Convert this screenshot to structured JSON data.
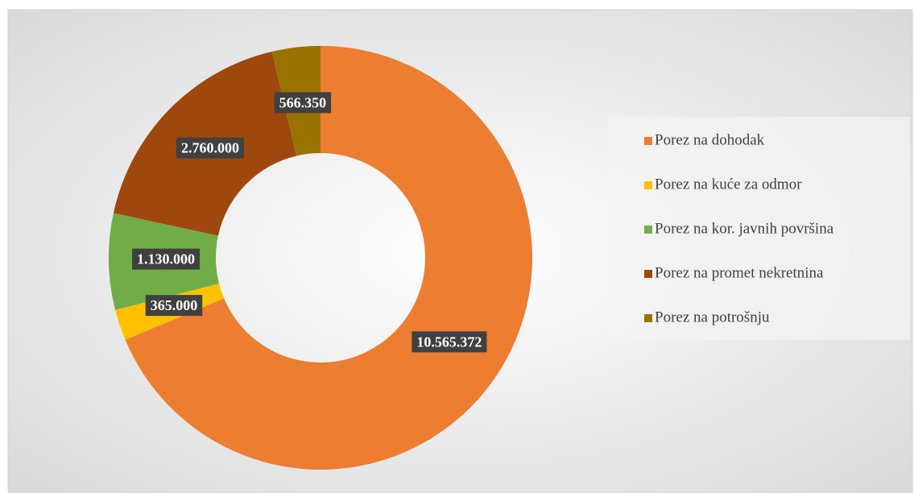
{
  "chart_data": {
    "type": "donut",
    "categories": [
      "Porez na dohodak",
      "Porez na kuće za odmor",
      "Porez na kor. javnih površina",
      "Porez na promet nekretnina",
      "Porez na potrošnju"
    ],
    "values": [
      10565372,
      365000,
      1130000,
      2760000,
      566350
    ],
    "value_labels": [
      "10.565.372",
      "365.000",
      "1.130.000",
      "2.760.000",
      "566.350"
    ],
    "colors": [
      "#ED7D31",
      "#FFC000",
      "#70AD47",
      "#9E480E",
      "#997300"
    ],
    "legend": "right"
  }
}
